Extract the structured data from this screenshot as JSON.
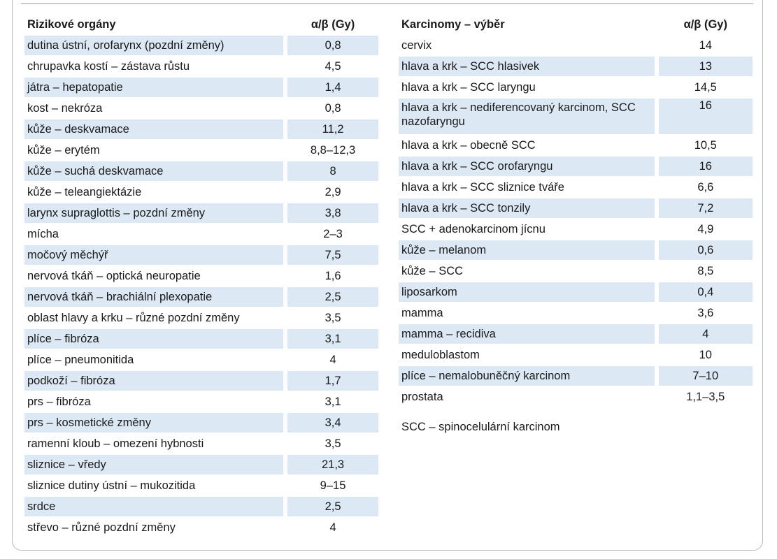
{
  "left_table": {
    "headers": {
      "name": "Rizikové orgány",
      "value": "α/β (Gy)"
    },
    "rows": [
      {
        "name": "dutina ústní, orofarynx (pozdní změny)",
        "value": "0,8",
        "shaded": true
      },
      {
        "name": "chrupavka kostí – zástava růstu",
        "value": "4,5",
        "shaded": false
      },
      {
        "name": "játra – hepatopatie",
        "value": "1,4",
        "shaded": true
      },
      {
        "name": "kost – nekróza",
        "value": "0,8",
        "shaded": false
      },
      {
        "name": "kůže – deskvamace",
        "value": "11,2",
        "shaded": true
      },
      {
        "name": "kůže – erytém",
        "value": "8,8–12,3",
        "shaded": false
      },
      {
        "name": "kůže – suchá deskvamace",
        "value": "8",
        "shaded": true
      },
      {
        "name": "kůže – teleangiektázie",
        "value": "2,9",
        "shaded": false
      },
      {
        "name": "larynx supraglottis – pozdní změny",
        "value": "3,8",
        "shaded": true
      },
      {
        "name": "mícha",
        "value": "2–3",
        "shaded": false
      },
      {
        "name": "močový měchýř",
        "value": "7,5",
        "shaded": true
      },
      {
        "name": "nervová tkáň – optická neuropatie",
        "value": "1,6",
        "shaded": false
      },
      {
        "name": "nervová tkáň – brachiální plexopatie",
        "value": "2,5",
        "shaded": true
      },
      {
        "name": "oblast hlavy a krku – různé pozdní změny",
        "value": "3,5",
        "shaded": false
      },
      {
        "name": "plíce – fibróza",
        "value": "3,1",
        "shaded": true
      },
      {
        "name": "plíce – pneumonitida",
        "value": "4",
        "shaded": false
      },
      {
        "name": "podkoží – fibróza",
        "value": "1,7",
        "shaded": true
      },
      {
        "name": "prs – fibróza",
        "value": "3,1",
        "shaded": false
      },
      {
        "name": "prs – kosmetické změny",
        "value": "3,4",
        "shaded": true
      },
      {
        "name": "ramenní kloub – omezení hybnosti",
        "value": "3,5",
        "shaded": false
      },
      {
        "name": "sliznice – vředy",
        "value": "21,3",
        "shaded": true
      },
      {
        "name": "sliznice dutiny ústní – mukozitida",
        "value": "9–15",
        "shaded": false
      },
      {
        "name": "srdce",
        "value": "2,5",
        "shaded": true
      },
      {
        "name": "střevo – různé pozdní změny",
        "value": "4",
        "shaded": false
      }
    ]
  },
  "right_table": {
    "headers": {
      "name": "Karcinomy – výběr",
      "value": "α/β (Gy)"
    },
    "rows": [
      {
        "name": "cervix",
        "value": "14",
        "shaded": false
      },
      {
        "name": "hlava a krk – SCC hlasivek",
        "value": "13",
        "shaded": true
      },
      {
        "name": "hlava a krk – SCC laryngu",
        "value": "14,5",
        "shaded": false
      },
      {
        "name": "hlava a krk – nediferencovaný karcinom, SCC nazofaryngu",
        "value": "16",
        "shaded": true,
        "tall": true
      },
      {
        "name": "hlava a krk – obecně SCC",
        "value": "10,5",
        "shaded": false
      },
      {
        "name": "hlava a krk – SCC orofaryngu",
        "value": "16",
        "shaded": true
      },
      {
        "name": "hlava a krk – SCC sliznice tváře",
        "value": "6,6",
        "shaded": false
      },
      {
        "name": "hlava a krk – SCC tonzily",
        "value": "7,2",
        "shaded": true
      },
      {
        "name": "SCC + adenokarcinom jícnu",
        "value": "4,9",
        "shaded": false
      },
      {
        "name": "kůže – melanom",
        "value": "0,6",
        "shaded": true
      },
      {
        "name": "kůže – SCC",
        "value": "8,5",
        "shaded": false
      },
      {
        "name": "liposarkom",
        "value": "0,4",
        "shaded": true
      },
      {
        "name": "mamma",
        "value": "3,6",
        "shaded": false
      },
      {
        "name": "mamma – recidiva",
        "value": "4",
        "shaded": true
      },
      {
        "name": "meduloblastom",
        "value": "10",
        "shaded": false
      },
      {
        "name": "plíce – nemalobuněčný karcinom",
        "value": "7–10",
        "shaded": true
      },
      {
        "name": "prostata",
        "value": "1,1–3,5",
        "shaded": false
      }
    ]
  },
  "footnote": "SCC – spinocelulární karcinom",
  "colors": {
    "row_shade": "#dde8f5",
    "frame": "#b9b9b9"
  }
}
